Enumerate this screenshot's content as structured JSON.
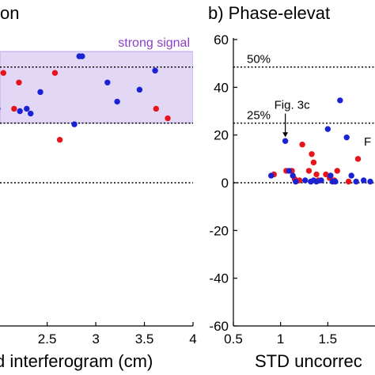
{
  "colors": {
    "red": "#e8141c",
    "blue": "#1a22d4",
    "band_fill": "#e2d8f6",
    "band_stroke": "#b9a8e8",
    "band_label": "#8e3fc9"
  },
  "chart_data": [
    {
      "type": "scatter",
      "title": "on",
      "xlabel": "d interferogram (cm)",
      "ylabel": "",
      "xlim": [
        1.95,
        4.0
      ],
      "ylim": [
        -60,
        60
      ],
      "x_ticks": [
        {
          "v": 2.5,
          "label": "2.5"
        },
        {
          "v": 3,
          "label": "3"
        },
        {
          "v": 3.5,
          "label": "3.5"
        },
        {
          "v": 4,
          "label": "4"
        }
      ],
      "y_ticks": [],
      "band": {
        "y0": 25,
        "y1": 55,
        "label": "strong signal"
      },
      "ref_lines": [
        {
          "y": 48.5,
          "label": ""
        },
        {
          "y": 25,
          "label": ""
        },
        {
          "y": 0,
          "label": ""
        }
      ],
      "annotations": [],
      "series": [
        {
          "color": "red",
          "points": [
            [
              1.97,
              39.5
            ],
            [
              2.05,
              46
            ],
            [
              2.16,
              31
            ],
            [
              2.21,
              42
            ],
            [
              2.58,
              46
            ],
            [
              2.63,
              18
            ],
            [
              3.62,
              31
            ],
            [
              3.74,
              27
            ]
          ]
        },
        {
          "color": "blue",
          "points": [
            [
              1.98,
              46
            ],
            [
              1.99,
              31
            ],
            [
              2.22,
              30
            ],
            [
              2.29,
              31
            ],
            [
              2.33,
              29
            ],
            [
              2.43,
              38
            ],
            [
              2.78,
              24.5
            ],
            [
              2.83,
              53
            ],
            [
              2.86,
              53
            ],
            [
              3.12,
              42
            ],
            [
              3.22,
              34
            ],
            [
              3.45,
              39
            ],
            [
              3.61,
              47
            ]
          ]
        }
      ]
    },
    {
      "type": "scatter",
      "title": "b) Phase-elevat",
      "xlabel": "STD uncorrec",
      "ylabel": "",
      "xlim": [
        0.5,
        2.0
      ],
      "ylim": [
        -60,
        60
      ],
      "x_ticks": [
        {
          "v": 0.5,
          "label": "0.5"
        },
        {
          "v": 1,
          "label": "1"
        },
        {
          "v": 1.5,
          "label": "1.5"
        }
      ],
      "y_ticks": [
        {
          "v": 60,
          "label": "60"
        },
        {
          "v": 40,
          "label": "40"
        },
        {
          "v": 20,
          "label": "20"
        },
        {
          "v": 0,
          "label": "0"
        },
        {
          "v": -20,
          "label": "-20"
        },
        {
          "v": -40,
          "label": "-40"
        },
        {
          "v": -60,
          "label": "-60"
        }
      ],
      "band": null,
      "ref_lines": [
        {
          "y": 48.5,
          "label": "50%"
        },
        {
          "y": 25,
          "label": "25%"
        },
        {
          "y": 0,
          "label": ""
        }
      ],
      "annotations": [
        {
          "text": "Fig. 3c"
        },
        {
          "text": "F"
        }
      ],
      "series": [
        {
          "color": "red",
          "points": [
            [
              0.93,
              3.5
            ],
            [
              1.06,
              5
            ],
            [
              1.12,
              5
            ],
            [
              1.15,
              1.5
            ],
            [
              1.2,
              1
            ],
            [
              1.23,
              16
            ],
            [
              1.3,
              5
            ],
            [
              1.33,
              12
            ],
            [
              1.35,
              8.5
            ],
            [
              1.38,
              3.5
            ],
            [
              1.4,
              1
            ],
            [
              1.48,
              3.5
            ],
            [
              1.52,
              2
            ],
            [
              1.57,
              1
            ],
            [
              1.6,
              5
            ],
            [
              1.72,
              0.5
            ],
            [
              1.82,
              10
            ]
          ]
        },
        {
          "color": "blue",
          "points": [
            [
              0.9,
              3
            ],
            [
              1.05,
              17.5
            ],
            [
              1.09,
              5
            ],
            [
              1.13,
              3
            ],
            [
              1.16,
              0.5
            ],
            [
              1.26,
              1
            ],
            [
              1.32,
              0.5
            ],
            [
              1.35,
              1
            ],
            [
              1.38,
              0.5
            ],
            [
              1.43,
              1
            ],
            [
              1.5,
              22.5
            ],
            [
              1.53,
              3
            ],
            [
              1.55,
              0.5
            ],
            [
              1.58,
              0.5
            ],
            [
              1.63,
              34.5
            ],
            [
              1.7,
              19
            ],
            [
              1.75,
              3
            ],
            [
              1.8,
              0.5
            ],
            [
              1.88,
              1
            ],
            [
              1.95,
              0.5
            ]
          ]
        }
      ]
    }
  ]
}
